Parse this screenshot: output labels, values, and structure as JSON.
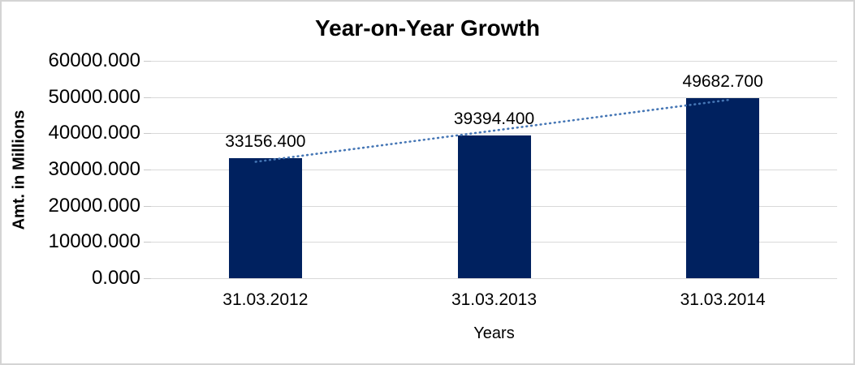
{
  "chart_data": {
    "type": "bar",
    "title": "Year-on-Year Growth",
    "xlabel": "Years",
    "ylabel": "Amt. in Millions",
    "categories": [
      "31.03.2012",
      "31.03.2013",
      "31.03.2014"
    ],
    "values": [
      33156.4,
      39394.4,
      49682.7
    ],
    "data_labels": [
      "33156.400",
      "39394.400",
      "49682.700"
    ],
    "y_tick_labels": [
      "0.000",
      "10000.000",
      "20000.000",
      "30000.000",
      "40000.000",
      "50000.000",
      "60000.000"
    ],
    "y_tick_values": [
      0,
      10000,
      20000,
      30000,
      40000,
      50000,
      60000
    ],
    "ylim": [
      0,
      60000
    ],
    "grid": "horizontal",
    "legend": "none",
    "trendline": {
      "type": "linear",
      "style": "dotted"
    },
    "colors": {
      "bar": "#00215f",
      "trendline": "#4576b5",
      "gridline": "#d9d9d9",
      "text": "#000000",
      "background": "#ffffff",
      "frame_border": "#d4d4d4"
    }
  }
}
